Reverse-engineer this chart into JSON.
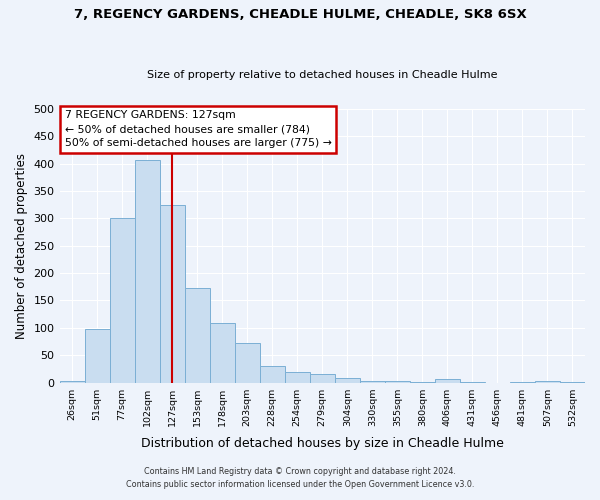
{
  "title1": "7, REGENCY GARDENS, CHEADLE HULME, CHEADLE, SK8 6SX",
  "title2": "Size of property relative to detached houses in Cheadle Hulme",
  "xlabel": "Distribution of detached houses by size in Cheadle Hulme",
  "ylabel": "Number of detached properties",
  "bin_labels": [
    "26sqm",
    "51sqm",
    "77sqm",
    "102sqm",
    "127sqm",
    "153sqm",
    "178sqm",
    "203sqm",
    "228sqm",
    "254sqm",
    "279sqm",
    "304sqm",
    "330sqm",
    "355sqm",
    "380sqm",
    "406sqm",
    "431sqm",
    "456sqm",
    "481sqm",
    "507sqm",
    "532sqm"
  ],
  "bar_values": [
    3,
    97,
    300,
    407,
    325,
    173,
    108,
    72,
    30,
    20,
    16,
    9,
    3,
    2,
    1,
    6,
    1,
    0,
    1,
    3,
    1
  ],
  "bar_color": "#c9ddf0",
  "bar_edgecolor": "#7bafd4",
  "vline_x": 4,
  "vline_color": "#cc0000",
  "annotation_title": "7 REGENCY GARDENS: 127sqm",
  "annotation_line1": "← 50% of detached houses are smaller (784)",
  "annotation_line2": "50% of semi-detached houses are larger (775) →",
  "annotation_box_color": "#ffffff",
  "annotation_box_edgecolor": "#cc0000",
  "ylim": [
    0,
    500
  ],
  "yticks": [
    0,
    50,
    100,
    150,
    200,
    250,
    300,
    350,
    400,
    450,
    500
  ],
  "footer1": "Contains HM Land Registry data © Crown copyright and database right 2024.",
  "footer2": "Contains public sector information licensed under the Open Government Licence v3.0.",
  "bg_color": "#eef3fb",
  "plot_bg_color": "#eef3fb",
  "grid_color": "#ffffff"
}
